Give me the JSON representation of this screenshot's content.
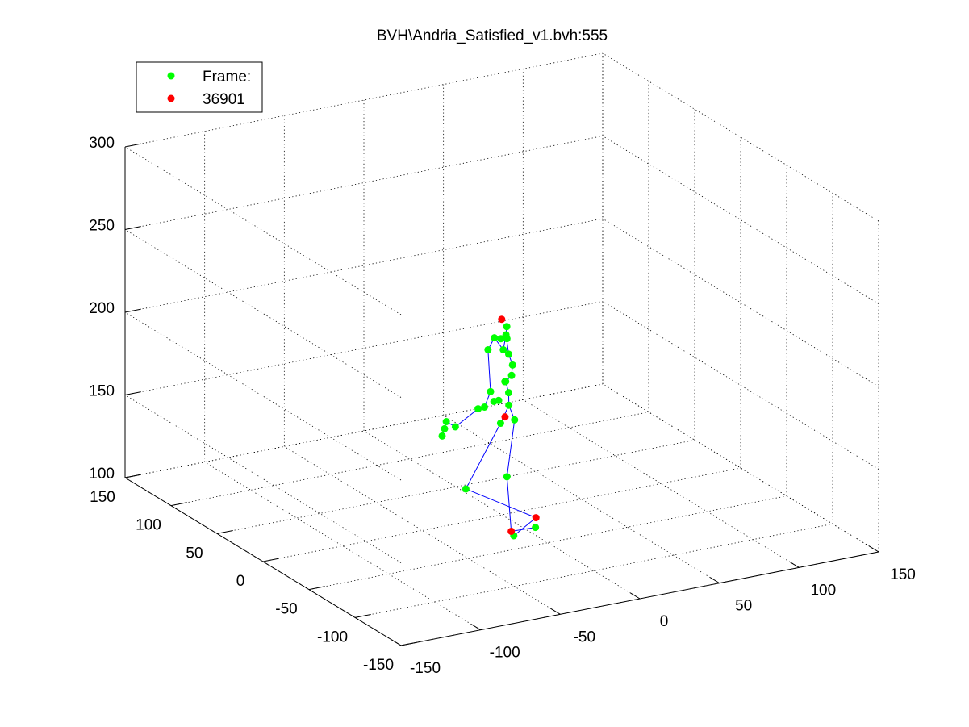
{
  "chart_data": {
    "type": "scatter",
    "title": "BVH\\Andria_Satisfied_v1.bvh:555",
    "xlabel": "",
    "ylabel": "",
    "zlabel": "",
    "xlim": [
      -150,
      150
    ],
    "ylim": [
      -150,
      150
    ],
    "zlim": [
      100,
      300
    ],
    "x_ticks": [
      "-150",
      "-100",
      "-50",
      "0",
      "50",
      "100",
      "150"
    ],
    "y_ticks": [
      "-150",
      "-100",
      "-50",
      "0",
      "50",
      "100",
      "150"
    ],
    "z_ticks": [
      "100",
      "150",
      "200",
      "250",
      "300"
    ],
    "grid": true,
    "legend_position": "top-left",
    "legend": [
      {
        "label": "Frame:",
        "color": "#00ff00"
      },
      {
        "label": "36901",
        "color": "#ff0000"
      }
    ],
    "colors": {
      "joint": "#00ff00",
      "end_site": "#ff0000",
      "bone": "#0000ff"
    },
    "joints_green": [
      {
        "x": 2.6,
        "y": 0,
        "z": 208.3
      },
      {
        "x": 4.3,
        "y": 0,
        "z": 196.3
      },
      {
        "x": 6.7,
        "y": 0,
        "z": 189.3
      },
      {
        "x": 6.1,
        "y": 0,
        "z": 183.1
      },
      {
        "x": 2.4,
        "y": 0,
        "z": 180.1
      },
      {
        "x": 4.3,
        "y": 0,
        "z": 173.0
      },
      {
        "x": 4.4,
        "y": 0,
        "z": 165.4
      },
      {
        "x": 8.0,
        "y": 0,
        "z": 155.9
      },
      {
        "x": 1.9,
        "y": 0,
        "z": 180.1
      },
      {
        "x": 0.9,
        "y": 0,
        "z": 199.6
      },
      {
        "x": -4.7,
        "y": 0,
        "z": 207.9
      },
      {
        "x": -7.1,
        "y": 0,
        "z": 175.8
      },
      {
        "x": -10.9,
        "y": 0,
        "z": 167.2
      },
      {
        "x": -14.9,
        "y": 0,
        "z": 166.9
      },
      {
        "x": -29.2,
        "y": 0,
        "z": 158.7
      },
      {
        "x": -34.9,
        "y": 0,
        "z": 162.9
      },
      {
        "x": -36.0,
        "y": 0,
        "z": 158.8
      },
      {
        "x": -37.5,
        "y": 0,
        "z": 154.7
      },
      {
        "x": -5.0,
        "y": 0,
        "z": 169.5
      },
      {
        "x": -2.0,
        "y": 0,
        "z": 169.5
      },
      {
        "x": 3.1,
        "y": 0,
        "z": 213.2
      },
      {
        "x": 3.2,
        "y": 0,
        "z": 205.9
      },
      {
        "x": -0.6,
        "y": 0,
        "z": 206.6
      },
      {
        "x": -8.7,
        "y": 0,
        "z": 201.4
      },
      {
        "x": -0.8,
        "y": 0,
        "z": 155.5
      },
      {
        "x": -22.6,
        "y": 0,
        "z": 119.9
      },
      {
        "x": 3.2,
        "y": 0,
        "z": 122.4
      },
      {
        "x": 21.1,
        "y": 0,
        "z": 88.4
      },
      {
        "x": 7.5,
        "y": 0,
        "z": 85.9
      }
    ],
    "joints_red": [
      {
        "x": -0.1,
        "y": 0,
        "z": 218.2
      },
      {
        "x": 2.0,
        "y": 0,
        "z": 158.8
      },
      {
        "x": 21.4,
        "y": 0,
        "z": 94.2
      },
      {
        "x": 5.9,
        "y": 0,
        "z": 88.9
      }
    ],
    "bones": [
      [
        0,
        1
      ],
      [
        1,
        2
      ],
      [
        2,
        3
      ],
      [
        3,
        4
      ],
      [
        4,
        5
      ],
      [
        5,
        6
      ],
      [
        6,
        7
      ],
      [
        0,
        20
      ],
      [
        0,
        9
      ],
      [
        9,
        10
      ],
      [
        10,
        23
      ],
      [
        23,
        11
      ],
      [
        11,
        12
      ],
      [
        12,
        13
      ],
      [
        13,
        14
      ],
      [
        14,
        15
      ],
      [
        15,
        16
      ],
      [
        16,
        17
      ],
      [
        6,
        24
      ],
      [
        24,
        25
      ],
      [
        25,
        31
      ],
      [
        31,
        28
      ],
      [
        7,
        26
      ],
      [
        26,
        32
      ],
      [
        32,
        27
      ]
    ]
  }
}
